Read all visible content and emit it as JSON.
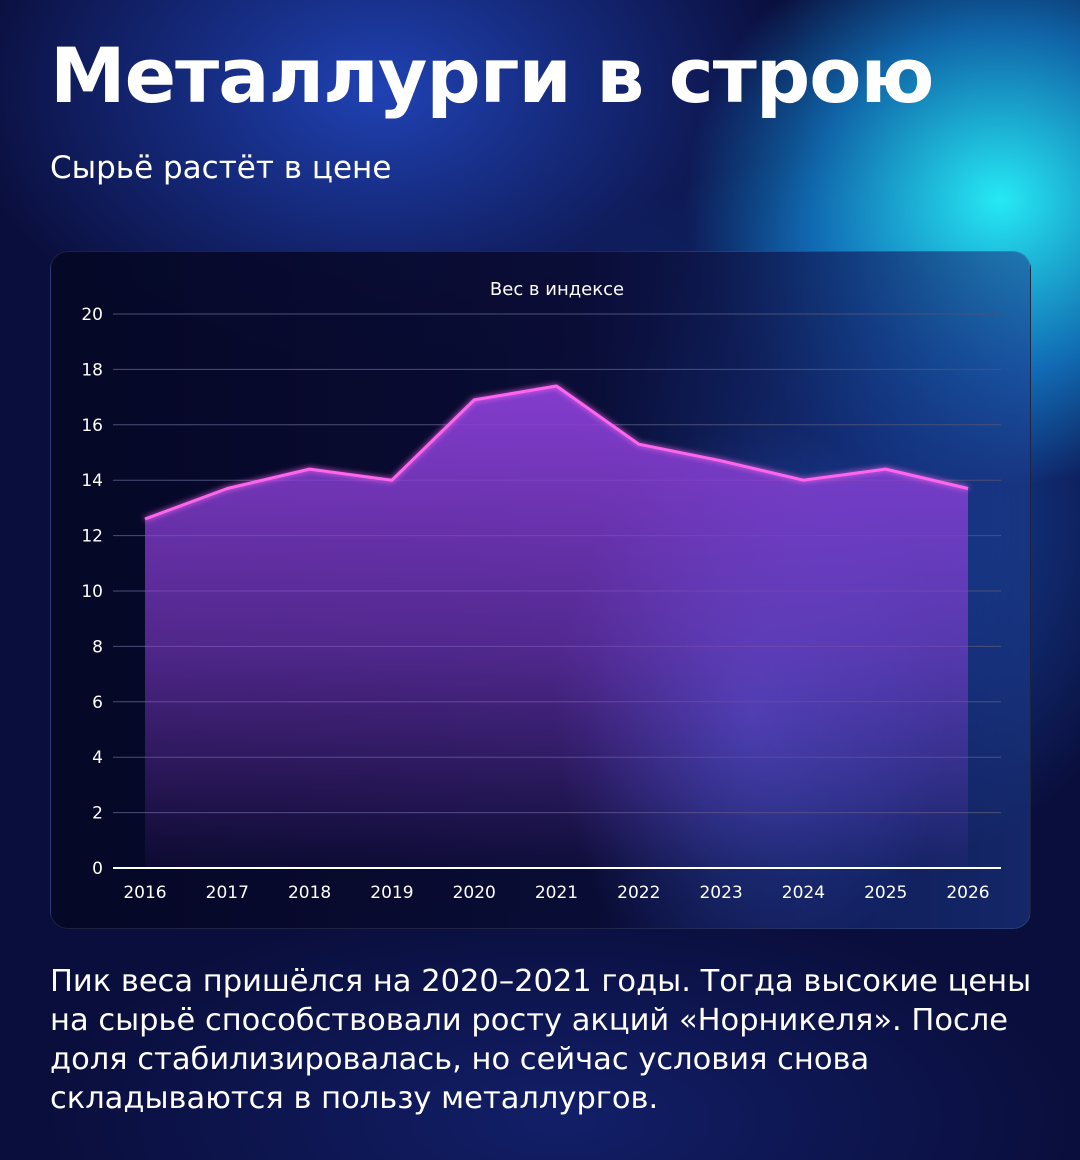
{
  "header": {
    "title": "Металлурги в строю",
    "subtitle": "Сырьё растёт в цене"
  },
  "footer": {
    "text": "Пик веса пришёлся на 2020–2021 годы. Тогда высокие цены на сырьё способствовали росту акций «Норникеля». После доля стабилизировалась, но сейчас условия снова складываются в пользу металлургов."
  },
  "colors": {
    "line": "#ff66ee",
    "area_top": "#8a3fd6",
    "grid": "#4a4f78",
    "axis": "#ffffff"
  },
  "chart_data": {
    "type": "area",
    "title": "Вес в индексе",
    "xlabel": "",
    "ylabel": "",
    "x": [
      "2016",
      "2017",
      "2018",
      "2019",
      "2020",
      "2021",
      "2022",
      "2023",
      "2024",
      "2025",
      "2026"
    ],
    "series": [
      {
        "values": [
          12.6,
          13.7,
          14.4,
          14.0,
          16.9,
          17.4,
          15.3,
          14.7,
          14.0,
          14.4,
          13.7
        ]
      }
    ],
    "yticks": [
      "0",
      "2",
      "4",
      "6",
      "8",
      "10",
      "12",
      "14",
      "16",
      "18",
      "20"
    ],
    "ylim": [
      0,
      20
    ],
    "grid": true,
    "legend": "none"
  }
}
